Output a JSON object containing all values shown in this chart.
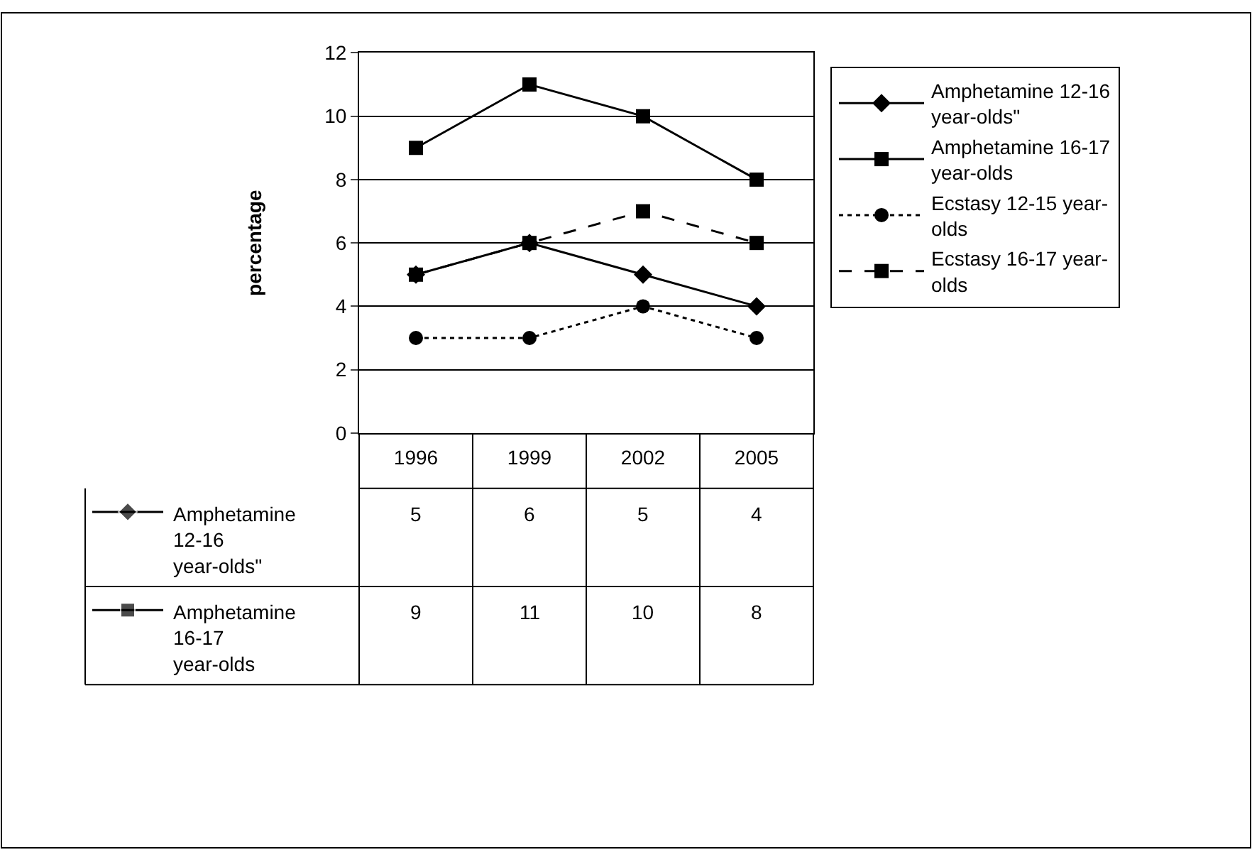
{
  "chart_data": {
    "type": "line",
    "ylabel": "percentage",
    "categories": [
      "1996",
      "1999",
      "2002",
      "2005"
    ],
    "ylim": [
      0,
      12
    ],
    "yticks": [
      0,
      2,
      4,
      6,
      8,
      10,
      12
    ],
    "grid": "y",
    "legend": "right",
    "series": [
      {
        "name": "Amphetamine 12-16 year-olds\"",
        "color": "#000000",
        "marker": "diamond",
        "line_style": "solid",
        "values": [
          5,
          6,
          5,
          4
        ],
        "value_labels": [
          "5",
          "6",
          "5",
          "4"
        ]
      },
      {
        "name": "Amphetamine 16-17 year-olds",
        "color": "#000000",
        "marker": "square",
        "line_style": "solid",
        "values": [
          9,
          11,
          10,
          8
        ],
        "value_labels": [
          "9",
          "11",
          "10",
          "8"
        ]
      },
      {
        "name": "Ecstasy 12-15 year-olds",
        "color": "#000000",
        "marker": "circle",
        "line_style": "dotted",
        "values": [
          3,
          3,
          4,
          3
        ]
      },
      {
        "name": "Ecstasy 16-17 year-olds",
        "color": "#000000",
        "marker": "square",
        "line_style": "dashed",
        "values": [
          5,
          6,
          7,
          6
        ]
      }
    ]
  }
}
